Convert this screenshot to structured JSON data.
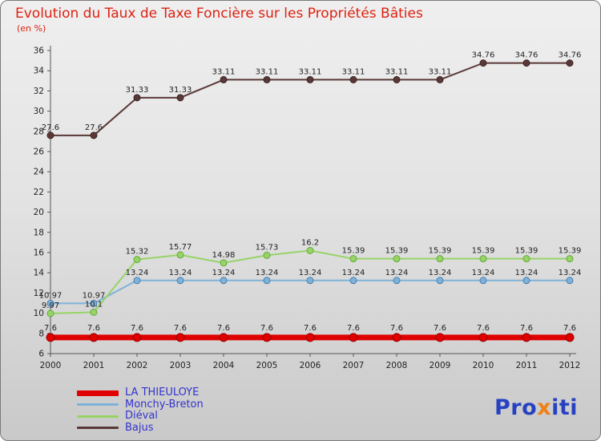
{
  "title": "Evolution du Taux de Taxe Foncière sur les Propriétés Bâties",
  "subtitle": "(en %)",
  "title_color": "#dd2211",
  "legend_text_color": "#3333cc",
  "chart_data": {
    "type": "line",
    "title": "Evolution du Taux de Taxe Foncière sur les Propriétés Bâties",
    "subtitle": "(en %)",
    "xlabel": "",
    "ylabel": "",
    "ylim": [
      6,
      36
    ],
    "ytick_step": 2,
    "grid": false,
    "legend_position": "bottom-left",
    "x": [
      "2000",
      "2001",
      "2002",
      "2003",
      "2004",
      "2005",
      "2006",
      "2007",
      "2008",
      "2009",
      "2010",
      "2011",
      "2012"
    ],
    "series": [
      {
        "name": "LA THIEULOYE",
        "color": "#e00000",
        "marker_stroke": "#990000",
        "line_width": 7,
        "marker_r": 5,
        "label_dy": 9,
        "values": [
          7.6,
          7.6,
          7.6,
          7.6,
          7.6,
          7.6,
          7.6,
          7.6,
          7.6,
          7.6,
          7.6,
          7.6,
          7.6
        ]
      },
      {
        "name": "Monchy-Breton",
        "color": "#7fb2d9",
        "marker_stroke": "#4a7fae",
        "line_width": 2,
        "marker_r": 4,
        "label_dy": 7,
        "values": [
          10.97,
          10.97,
          13.24,
          13.24,
          13.24,
          13.24,
          13.24,
          13.24,
          13.24,
          13.24,
          13.24,
          13.24,
          13.24
        ]
      },
      {
        "name": "Diéval",
        "color": "#97d468",
        "marker_stroke": "#67a83e",
        "line_width": 2,
        "marker_r": 4,
        "label_dy": 7,
        "values": [
          9.97,
          10.1,
          15.32,
          15.77,
          14.98,
          15.73,
          16.2,
          15.39,
          15.39,
          15.39,
          15.39,
          15.39,
          15.39
        ]
      },
      {
        "name": "Bajus",
        "color": "#5a3838",
        "marker_stroke": "#3c2424",
        "line_width": 2,
        "marker_r": 4,
        "label_dy": 7,
        "values": [
          27.6,
          27.6,
          31.33,
          31.33,
          33.11,
          33.11,
          33.11,
          33.11,
          33.11,
          33.11,
          34.76,
          34.76,
          34.76
        ]
      }
    ]
  },
  "logo": {
    "text": "Proxiti",
    "segments": [
      {
        "text": "Pro",
        "color": "#2742c0"
      },
      {
        "text": "x",
        "color": "#f08018"
      },
      {
        "text": "iti",
        "color": "#2742c0"
      }
    ]
  }
}
